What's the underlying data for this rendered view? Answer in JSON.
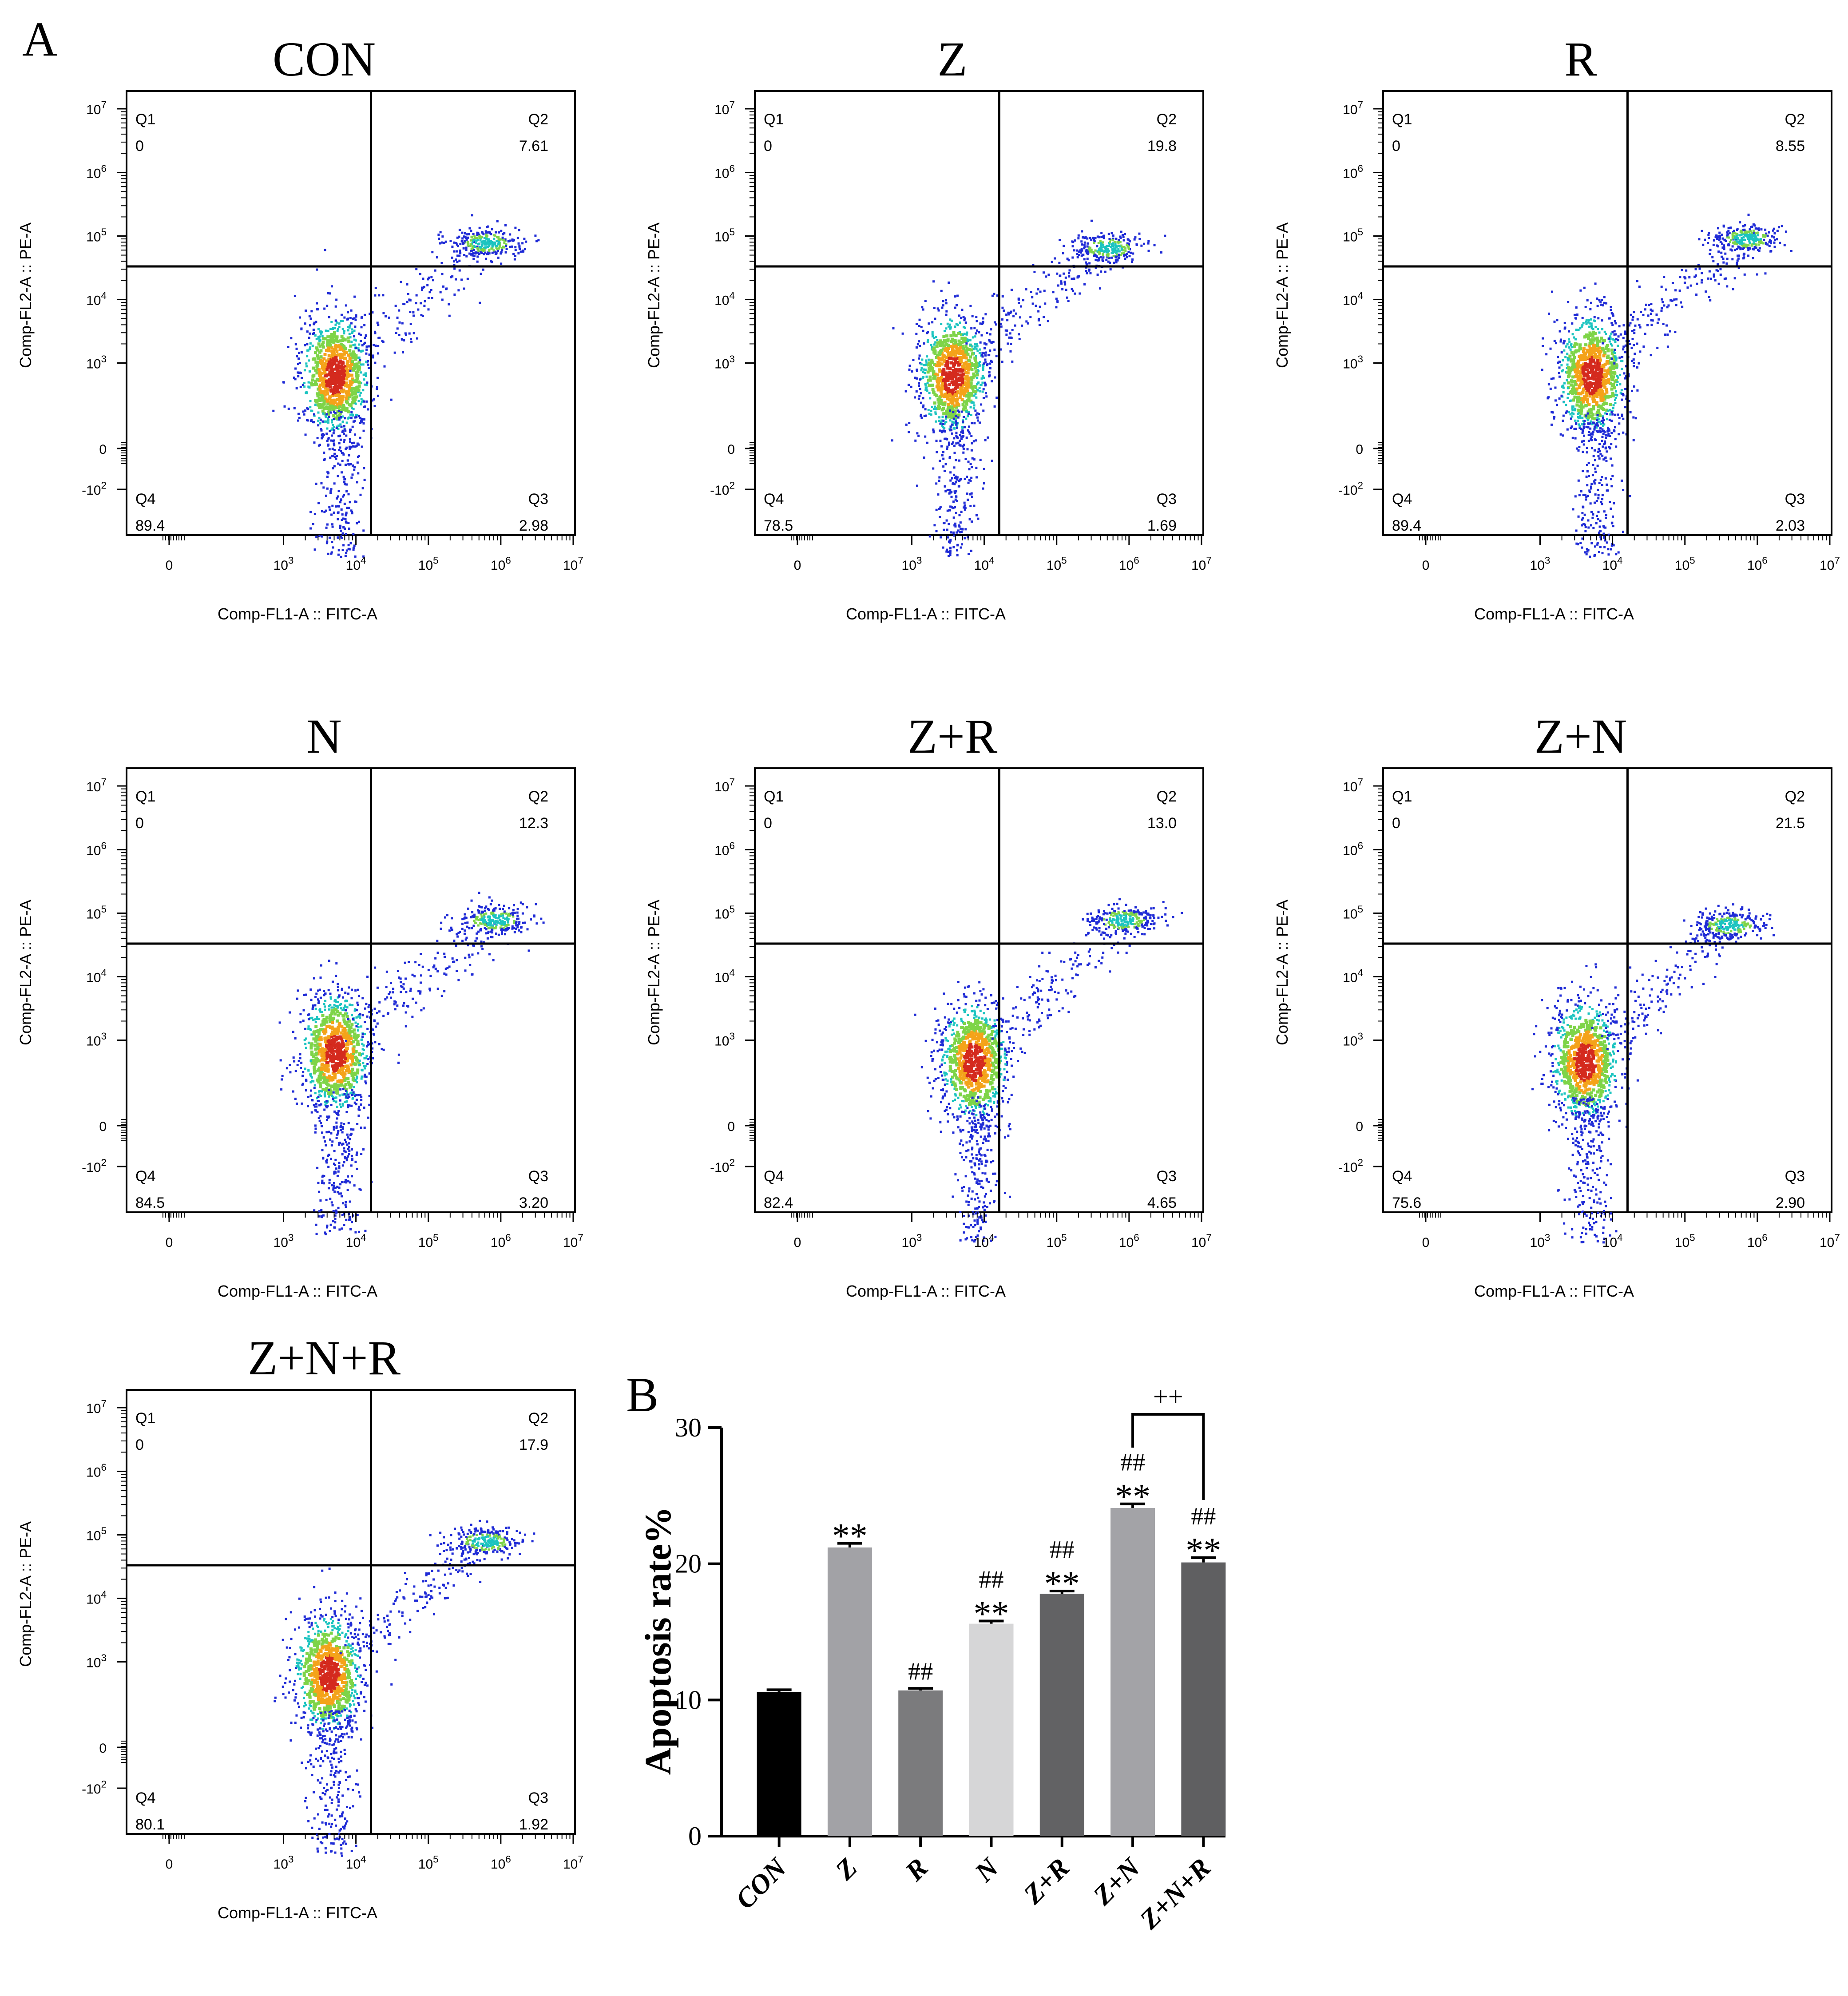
{
  "figure": {
    "panel_label_a": "A",
    "panel_label_b": "B"
  },
  "chart_data": [
    {
      "type": "scatter",
      "subtype": "flow-cytometry-quadrant",
      "title": "CON",
      "xlabel": "Comp-FL1-A :: FITC-A",
      "ylabel": "Comp-FL2-A :: PE-A",
      "quadrants": [
        {
          "name": "Q1",
          "value": "0"
        },
        {
          "name": "Q2",
          "value": "7.61"
        },
        {
          "name": "Q3",
          "value": "2.98"
        },
        {
          "name": "Q4",
          "value": "89.4"
        }
      ],
      "x_ticks": [
        "0",
        "10^3",
        "10^4",
        "10^5",
        "10^6",
        "10^7"
      ],
      "y_ticks": [
        "10^7",
        "10^6",
        "10^5",
        "10^4",
        "10^3",
        "0",
        "-10^2"
      ],
      "gate": {
        "x": "2x10^4",
        "y": "2.5x10^4"
      },
      "population_centers": [
        [
          5000,
          800
        ],
        [
          600000,
          60000
        ]
      ]
    },
    {
      "type": "scatter",
      "subtype": "flow-cytometry-quadrant",
      "title": "Z",
      "xlabel": "Comp-FL1-A :: FITC-A",
      "ylabel": "Comp-FL2-A :: PE-A",
      "quadrants": [
        {
          "name": "Q1",
          "value": "0"
        },
        {
          "name": "Q2",
          "value": "19.8"
        },
        {
          "name": "Q3",
          "value": "1.69"
        },
        {
          "name": "Q4",
          "value": "78.5"
        }
      ],
      "x_ticks": [
        "0",
        "10^3",
        "10^4",
        "10^5",
        "10^6",
        "10^7"
      ],
      "y_ticks": [
        "10^7",
        "10^6",
        "10^5",
        "10^4",
        "10^3",
        "0",
        "-10^2"
      ],
      "gate": {
        "x": "2x10^4",
        "y": "2.5x10^4"
      },
      "population_centers": [
        [
          3500,
          800
        ],
        [
          500000,
          50000
        ]
      ]
    },
    {
      "type": "scatter",
      "subtype": "flow-cytometry-quadrant",
      "title": "R",
      "xlabel": "Comp-FL1-A :: FITC-A",
      "ylabel": "Comp-FL2-A :: PE-A",
      "quadrants": [
        {
          "name": "Q1",
          "value": "0"
        },
        {
          "name": "Q2",
          "value": "8.55"
        },
        {
          "name": "Q3",
          "value": "2.03"
        },
        {
          "name": "Q4",
          "value": "89.4"
        }
      ],
      "x_ticks": [
        "0",
        "10^3",
        "10^4",
        "10^5",
        "10^6",
        "10^7"
      ],
      "y_ticks": [
        "10^7",
        "10^6",
        "10^5",
        "10^4",
        "10^3",
        "0",
        "-10^2"
      ],
      "gate": {
        "x": "2x10^4",
        "y": "2.5x10^4"
      },
      "population_centers": [
        [
          5000,
          800
        ],
        [
          700000,
          70000
        ]
      ]
    },
    {
      "type": "scatter",
      "subtype": "flow-cytometry-quadrant",
      "title": "N",
      "xlabel": "Comp-FL1-A :: FITC-A",
      "ylabel": "Comp-FL2-A :: PE-A",
      "quadrants": [
        {
          "name": "Q1",
          "value": "0"
        },
        {
          "name": "Q2",
          "value": "12.3"
        },
        {
          "name": "Q3",
          "value": "3.20"
        },
        {
          "name": "Q4",
          "value": "84.5"
        }
      ],
      "x_ticks": [
        "0",
        "10^3",
        "10^4",
        "10^5",
        "10^6",
        "10^7"
      ],
      "y_ticks": [
        "10^7",
        "10^6",
        "10^5",
        "10^4",
        "10^3",
        "0",
        "-10^2"
      ],
      "gate": {
        "x": "2x10^4",
        "y": "2.5x10^4"
      },
      "population_centers": [
        [
          5000,
          800
        ],
        [
          800000,
          60000
        ]
      ]
    },
    {
      "type": "scatter",
      "subtype": "flow-cytometry-quadrant",
      "title": "Z+R",
      "xlabel": "Comp-FL1-A :: FITC-A",
      "ylabel": "Comp-FL2-A :: PE-A",
      "quadrants": [
        {
          "name": "Q1",
          "value": "0"
        },
        {
          "name": "Q2",
          "value": "13.0"
        },
        {
          "name": "Q3",
          "value": "4.65"
        },
        {
          "name": "Q4",
          "value": "82.4"
        }
      ],
      "x_ticks": [
        "0",
        "10^3",
        "10^4",
        "10^5",
        "10^6",
        "10^7"
      ],
      "y_ticks": [
        "10^7",
        "10^6",
        "10^5",
        "10^4",
        "10^3",
        "0",
        "-10^2"
      ],
      "gate": {
        "x": "2x10^4",
        "y": "2.5x10^4"
      },
      "population_centers": [
        [
          7000,
          700
        ],
        [
          800000,
          60000
        ]
      ]
    },
    {
      "type": "scatter",
      "subtype": "flow-cytometry-quadrant",
      "title": "Z+N",
      "xlabel": "Comp-FL1-A :: FITC-A",
      "ylabel": "Comp-FL2-A :: PE-A",
      "quadrants": [
        {
          "name": "Q1",
          "value": "0"
        },
        {
          "name": "Q2",
          "value": "21.5"
        },
        {
          "name": "Q3",
          "value": "2.90"
        },
        {
          "name": "Q4",
          "value": "75.6"
        }
      ],
      "x_ticks": [
        "0",
        "10^3",
        "10^4",
        "10^5",
        "10^6",
        "10^7"
      ],
      "y_ticks": [
        "10^7",
        "10^6",
        "10^5",
        "10^4",
        "10^3",
        "0",
        "-10^2"
      ],
      "gate": {
        "x": "2x10^4",
        "y": "2.5x10^4"
      },
      "population_centers": [
        [
          4000,
          700
        ],
        [
          400000,
          50000
        ]
      ]
    },
    {
      "type": "scatter",
      "subtype": "flow-cytometry-quadrant",
      "title": "Z+N+R",
      "xlabel": "Comp-FL1-A :: FITC-A",
      "ylabel": "Comp-FL2-A :: PE-A",
      "quadrants": [
        {
          "name": "Q1",
          "value": "0"
        },
        {
          "name": "Q2",
          "value": "17.9"
        },
        {
          "name": "Q3",
          "value": "1.92"
        },
        {
          "name": "Q4",
          "value": "80.1"
        }
      ],
      "x_ticks": [
        "0",
        "10^3",
        "10^4",
        "10^5",
        "10^6",
        "10^7"
      ],
      "y_ticks": [
        "10^7",
        "10^6",
        "10^5",
        "10^4",
        "10^3",
        "0",
        "-10^2"
      ],
      "gate": {
        "x": "2x10^4",
        "y": "2.5x10^4"
      },
      "population_centers": [
        [
          4000,
          800
        ],
        [
          600000,
          60000
        ]
      ]
    },
    {
      "type": "bar",
      "title": "",
      "xlabel": "",
      "ylabel": "Apoptosis rate%",
      "ylim": [
        0,
        30
      ],
      "yticks": [
        0,
        10,
        20,
        30
      ],
      "categories": [
        "CON",
        "Z",
        "R",
        "N",
        "Z+R",
        "Z+N",
        "Z+N+R"
      ],
      "values": [
        10.6,
        21.2,
        10.7,
        15.6,
        17.8,
        24.1,
        20.1
      ],
      "errors": [
        0.15,
        0.3,
        0.15,
        0.2,
        0.2,
        0.3,
        0.35
      ],
      "colors": [
        "#000000",
        "#a2a2a6",
        "#7b7b7d",
        "#d6d6d7",
        "#626264",
        "#a3a3a7",
        "#5f5f61"
      ],
      "annotations": [
        {
          "category": "Z",
          "marks": [
            "**"
          ]
        },
        {
          "category": "R",
          "marks": [
            "##"
          ]
        },
        {
          "category": "N",
          "marks": [
            "##",
            "**"
          ]
        },
        {
          "category": "Z+R",
          "marks": [
            "##",
            "**"
          ]
        },
        {
          "category": "Z+N",
          "marks": [
            "##",
            "**"
          ]
        },
        {
          "category": "Z+N+R",
          "marks": [
            "##",
            "**"
          ]
        }
      ],
      "bracket": {
        "from": "Z+N",
        "to": "Z+N+R",
        "label": "++"
      }
    }
  ]
}
